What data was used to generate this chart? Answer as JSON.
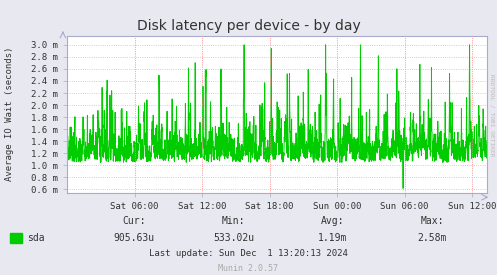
{
  "title": "Disk latency per device - by day",
  "ylabel": "Average IO Wait (seconds)",
  "bg_color": "#e8e8f0",
  "plot_bg_color": "#ffffff",
  "grid_color": "#ff9999",
  "line_color": "#00cc00",
  "line_width": 0.7,
  "yticks": [
    0.0006,
    0.0008,
    0.001,
    0.0012,
    0.0014,
    0.0016,
    0.0018,
    0.002,
    0.0022,
    0.0024,
    0.0026,
    0.0028,
    0.003
  ],
  "ytick_labels": [
    "0.6 m",
    "0.8 m",
    "1.0 m",
    "1.2 m",
    "1.4 m",
    "1.6 m",
    "1.8 m",
    "2.0 m",
    "2.2 m",
    "2.4 m",
    "2.6 m",
    "2.8 m",
    "3.0 m"
  ],
  "ylim": [
    0.00055,
    0.00315
  ],
  "xtick_labels": [
    "Sat 06:00",
    "Sat 12:00",
    "Sat 18:00",
    "Sun 00:00",
    "Sun 06:00",
    "Sun 12:00"
  ],
  "legend_label": "sda",
  "cur_label": "Cur:",
  "cur_val": "905.63u",
  "min_label": "Min:",
  "min_val": "533.02u",
  "avg_label": "Avg:",
  "avg_val": "1.19m",
  "max_label": "Max:",
  "max_val": "2.58m",
  "last_update": "Last update: Sun Dec  1 13:20:13 2024",
  "munin_version": "Munin 2.0.57",
  "watermark": "RRDTOOL / TOBI OETIKER",
  "title_color": "#333333",
  "axis_color": "#aaaacc",
  "text_color": "#333333",
  "footer_color": "#aaaaaa"
}
